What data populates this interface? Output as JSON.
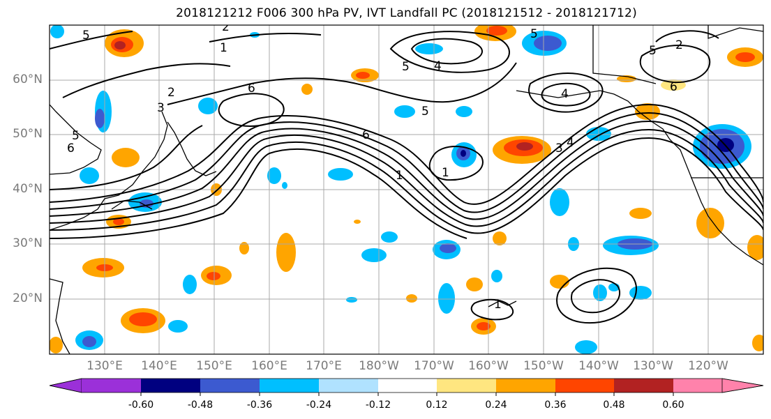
{
  "title": "2018121212 F006 300 hPa PV, IVT Landfall PC (2018121512 - 2018121712)",
  "lat_labels": [
    "60°N",
    "50°N",
    "40°N",
    "30°N",
    "20°N"
  ],
  "lon_labels": [
    "130°E",
    "140°E",
    "150°E",
    "160°E",
    "170°E",
    "180°W",
    "170°W",
    "160°W",
    "150°W",
    "140°W",
    "130°W",
    "120°W"
  ],
  "contour_labels": [
    "5",
    "2",
    "1",
    "5",
    "4",
    "5",
    "3",
    "2",
    "6",
    "6",
    "5",
    "6",
    "1",
    "1",
    "5",
    "4",
    "6",
    "3",
    "4",
    "5",
    "2",
    "1"
  ],
  "colorbar": {
    "ticks": [
      "-0.60",
      "-0.48",
      "-0.36",
      "-0.24",
      "-0.12",
      "0.12",
      "0.24",
      "0.36",
      "0.48",
      "0.60"
    ],
    "colors": [
      "#9b30d9",
      "#000080",
      "#3c5ad0",
      "#00bfff",
      "#b0e2ff",
      "#ffffff",
      "#ffe680",
      "#ffa500",
      "#ff4500",
      "#b22222",
      "#ff82ab"
    ]
  }
}
